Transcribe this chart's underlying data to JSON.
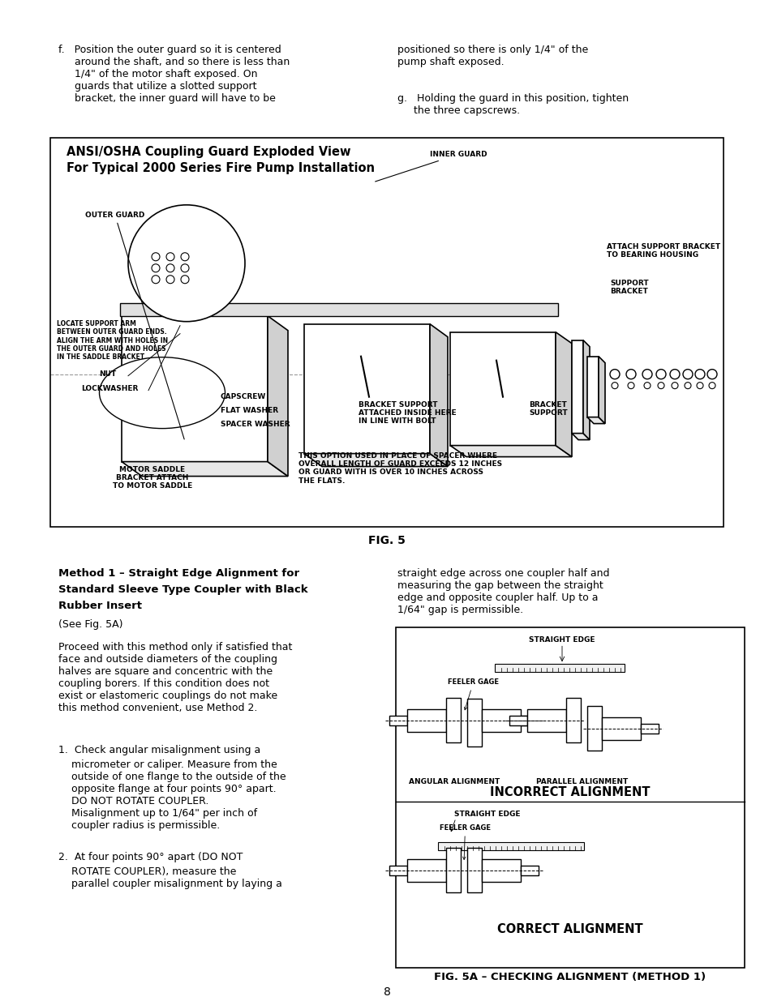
{
  "page_bg": "#ffffff",
  "text_color": "#000000",
  "border_color": "#000000",
  "page_number": "8",
  "fig5_title_line1": "ANSI/OSHA Coupling Guard Exploded View",
  "fig5_title_line2": "For Typical 2000 Series Fire Pump Installation",
  "fig5_caption": "FIG. 5",
  "method_title_line1": "Method 1 – Straight Edge Alignment for",
  "method_title_line2": "Standard Sleeve Type Coupler with Black",
  "method_title_line3": "Rubber Insert",
  "see_fig": "(See Fig. 5A)",
  "method_body": "Proceed with this method only if satisfied that\nface and outside diameters of the coupling\nhalves are square and concentric with the\ncoupling borers. If this condition does not\nexist or elastomeric couplings do not make\nthis method convenient, use Method 2.",
  "item1_title": "1.  Check angular misalignment using a",
  "item1_body": "    micrometer or caliper. Measure from the\n    outside of one flange to the outside of the\n    opposite flange at four points 90° apart.\n    DO NOT ROTATE COUPLER.\n    Misalignment up to 1/64\" per inch of\n    coupler radius is permissible.",
  "item2_title": "2.  At four points 90° apart (DO NOT",
  "item2_body": "    ROTATE COUPLER), measure the\n    parallel coupler misalignment by laying a",
  "right_text": "straight edge across one coupler half and\nmeasuring the gap between the straight\nedge and opposite coupler half. Up to a\n1/64\" gap is permissible.",
  "incorrect_label": "INCORRECT ALIGNMENT",
  "correct_label": "CORRECT ALIGNMENT",
  "fig5a_caption": "FIG. 5A – CHECKING ALIGNMENT (METHOD 1)",
  "straight_edge_label1": "STRAIGHT EDGE",
  "straight_edge_label2": "STRAIGHT EDGE",
  "feeler_gage_label1": "FEELER GAGE",
  "feeler_gage_label2": "FEELER GAGE",
  "angular_label": "ANGULAR ALIGNMENT",
  "parallel_label": "PARALLEL ALIGNMENT",
  "fig5_labels": {
    "inner_guard": "INNER GUARD",
    "outer_guard": "OUTER GUARD",
    "attach_bracket": "ATTACH SUPPORT BRACKET\nTO BEARING HOUSING",
    "support_bracket": "SUPPORT\nBRACKET",
    "locate_arm": "LOCATE SUPPORT ARM\nBETWEEN OUTER GUARD ENDS.\nALIGN THE ARM WITH HOLES IN\nTHE OUTER GUARD AND HOLES\nIN THE SADDLE BRACKET.",
    "nut": "NUT",
    "lockwasher": "LOCKWASHER",
    "capscrew": "CAPSCREW",
    "flat_washer": "FLAT WASHER",
    "spacer_washer": "SPACER WASHER",
    "motor_saddle": "MOTOR SADDLE\nBRACKET ATTACH\nTO MOTOR SADDLE",
    "bracket_support1": "BRACKET SUPPORT\nATTACHED INSIDE HERE\nIN LINE WITH BOLT",
    "bracket_support2": "BRACKET\nSUPPORT",
    "this_option": "THIS OPTION USED IN PLACE OF SPACER WHERE\nOVERALL LENGTH OF GUARD EXCEEDS 12 INCHES\nOR GUARD WITH IS OVER 10 INCHES ACROSS\nTHE FLATS."
  }
}
